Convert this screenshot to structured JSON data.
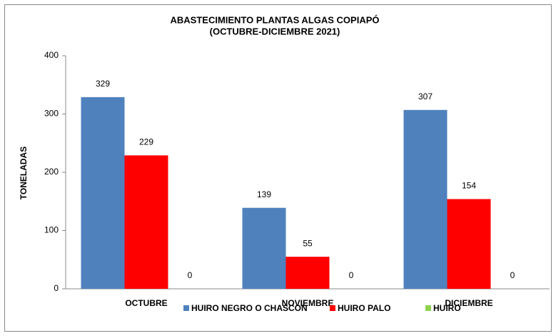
{
  "chart_data": {
    "type": "bar",
    "title": "ABASTECIMIENTO PLANTAS ALGAS  COPIAPÓ",
    "subtitle": "(OCTUBRE-DICIEMBRE 2021)",
    "y_label": "TONELADAS",
    "categories": [
      "OCTUBRE",
      "NOVIEMBRE",
      "DICIEMBRE"
    ],
    "series": [
      {
        "name": "HUIRO NEGRO O CHASCON",
        "color": "#4f81bd",
        "values": [
          329,
          139,
          307
        ]
      },
      {
        "name": "HUIRO PALO",
        "color": "#ff0000",
        "values": [
          229,
          55,
          154
        ]
      },
      {
        "name": "HUIRO",
        "color": "#92d050",
        "values": [
          0,
          0,
          0
        ]
      }
    ],
    "ylim": [
      0,
      400
    ],
    "yticks": [
      0,
      100,
      200,
      300,
      400
    ],
    "grid": false,
    "legend": "bottom"
  }
}
